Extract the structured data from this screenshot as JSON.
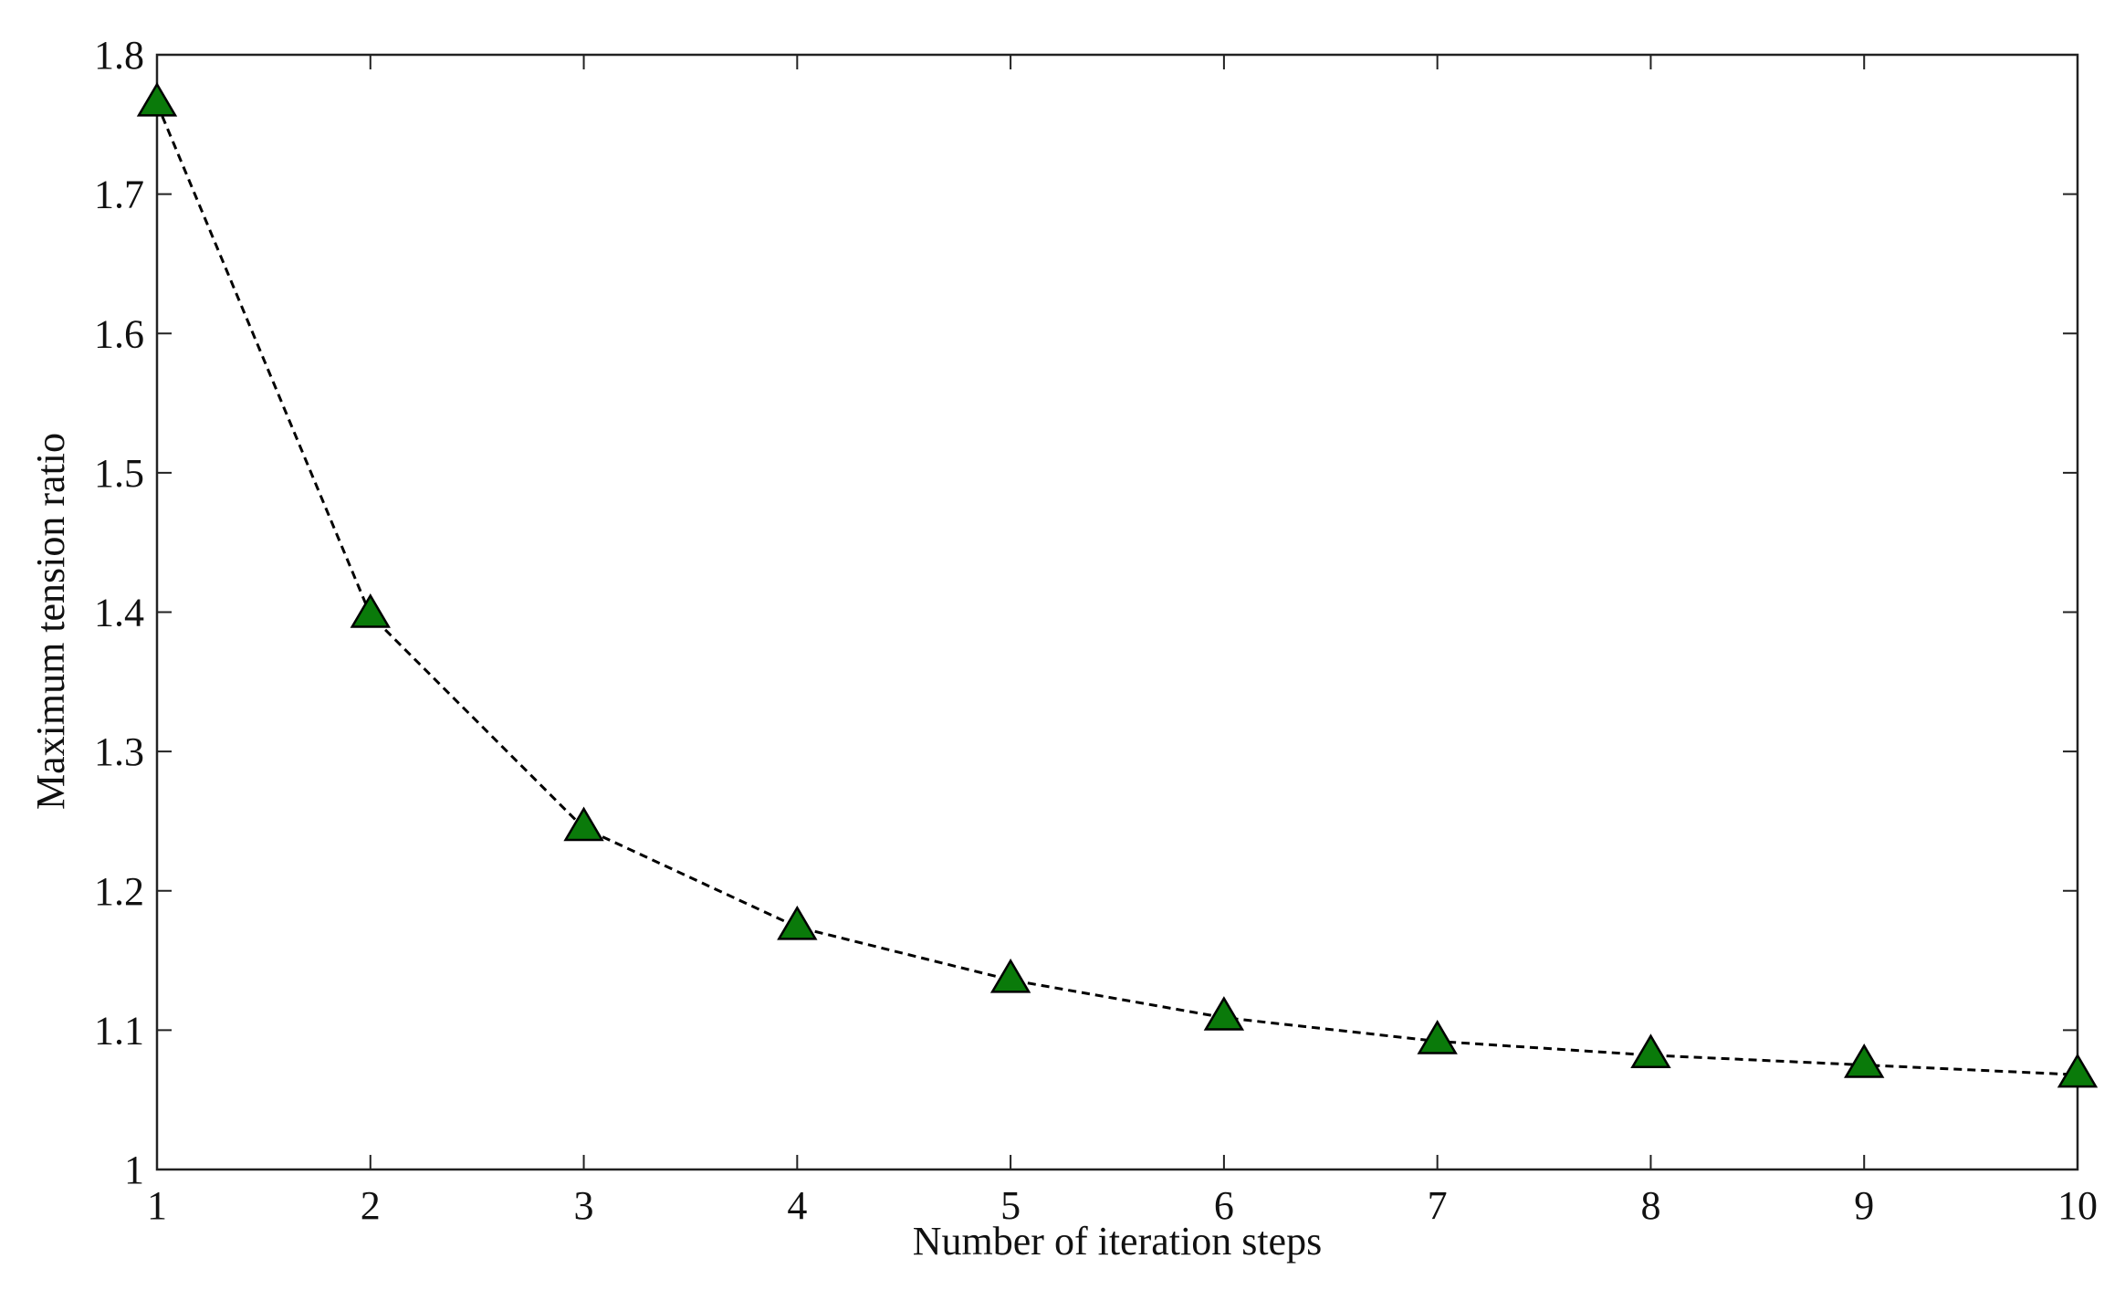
{
  "chart_data": {
    "type": "line",
    "title": "",
    "xlabel": "Number of iteration steps",
    "ylabel": "Maximum tension ratio",
    "x": [
      1,
      2,
      3,
      4,
      5,
      6,
      7,
      8,
      9,
      10
    ],
    "series": [
      {
        "values": [
          1.765,
          1.398,
          1.245,
          1.174,
          1.136,
          1.109,
          1.092,
          1.082,
          1.075,
          1.068
        ]
      }
    ],
    "xlim": [
      1,
      10
    ],
    "ylim": [
      1,
      1.8
    ],
    "x_ticks": [
      "1",
      "2",
      "3",
      "4",
      "5",
      "6",
      "7",
      "8",
      "9",
      "10"
    ],
    "y_ticks": [
      "1",
      "1.1",
      "1.2",
      "1.3",
      "1.4",
      "1.5",
      "1.6",
      "1.7",
      "1.8"
    ],
    "grid": false,
    "legend": "none",
    "line_style": "dashed",
    "line_color": "#000000",
    "marker": "triangle",
    "marker_fill": "#0a7a0a",
    "marker_edge": "#000000"
  }
}
